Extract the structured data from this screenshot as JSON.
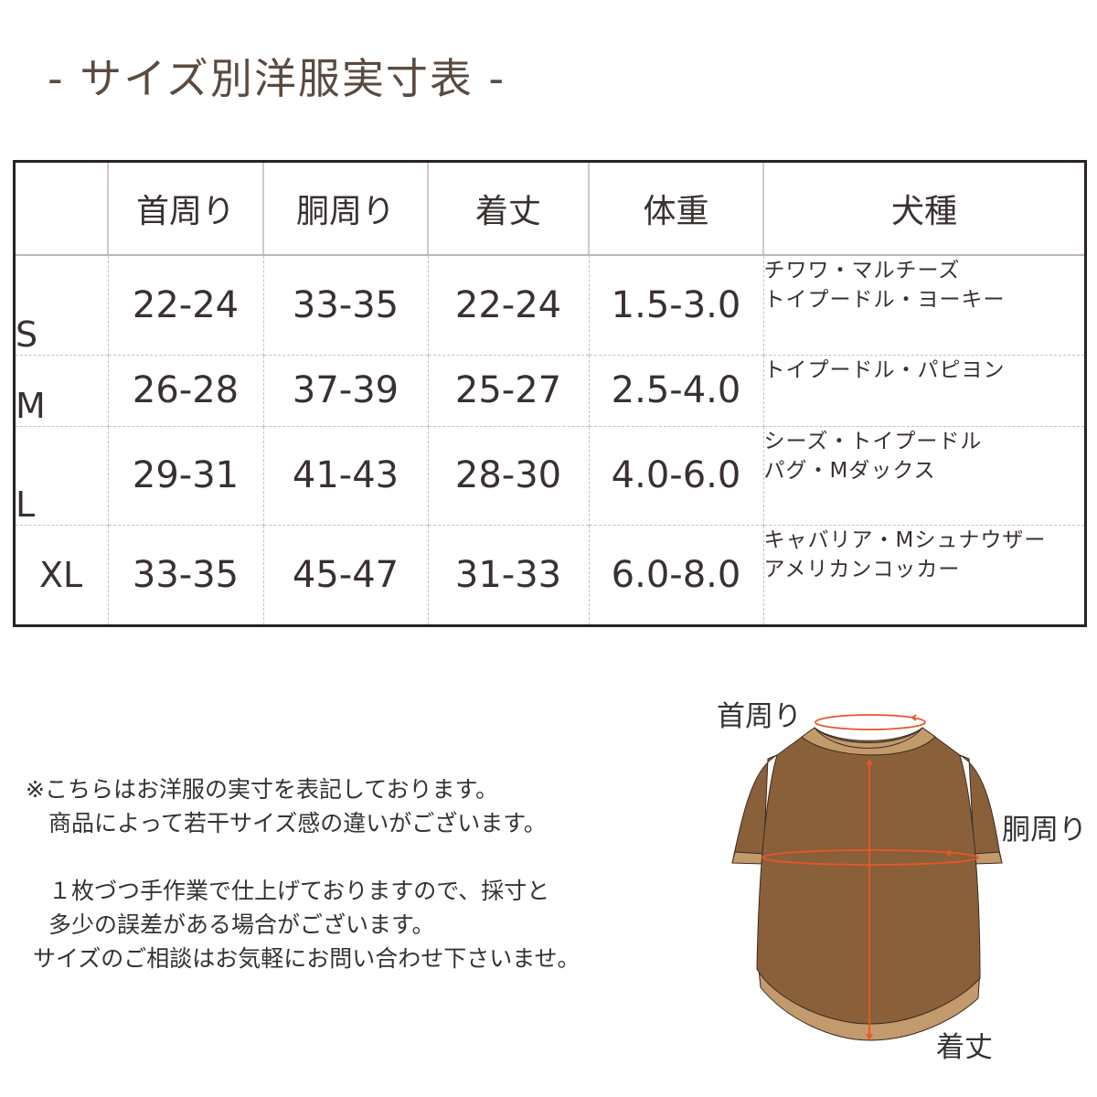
{
  "title": "- サイズ別洋服実寸表 -",
  "table": {
    "headers": [
      "",
      "首周り",
      "胴周り",
      "着丈",
      "体重",
      "犬種"
    ],
    "rows": [
      {
        "size": "S",
        "neck": "22-24",
        "chest": "33-35",
        "length": "22-24",
        "weight": "1.5-3.0",
        "breeds": [
          "チワワ・マルチーズ",
          "トイプードル・ヨーキー"
        ]
      },
      {
        "size": "M",
        "neck": "26-28",
        "chest": "37-39",
        "length": "25-27",
        "weight": "2.5-4.0",
        "breeds": [
          "トイプードル・パピヨン",
          ""
        ]
      },
      {
        "size": "L",
        "neck": "29-31",
        "chest": "41-43",
        "length": "28-30",
        "weight": "4.0-6.0",
        "breeds": [
          "シーズ・トイプードル",
          "パグ・Mダックス"
        ]
      },
      {
        "size": "XL",
        "neck": "33-35",
        "chest": "45-47",
        "length": "31-33",
        "weight": "6.0-8.0",
        "breeds": [
          "キャバリア・Mシュナウザー",
          "アメリカンコッカー"
        ]
      }
    ]
  },
  "notes": [
    "※こちらはお洋服の実寸を表記しております。",
    "　商品によって若干サイズ感の違いがございます。",
    "",
    "　１枚づつ手作業で仕上げておりますので、採寸と",
    "　多少の誤差がある場合がございます。",
    " サイズのご相談はお気軽にお問い合わせ下さいませ。"
  ],
  "diagram": {
    "neck_label": "首周り",
    "chest_label": "胴周り",
    "length_label": "着丈",
    "colors": {
      "body": "#8a603a",
      "trim": "#c29a6c",
      "measure": "#e8562a"
    }
  }
}
